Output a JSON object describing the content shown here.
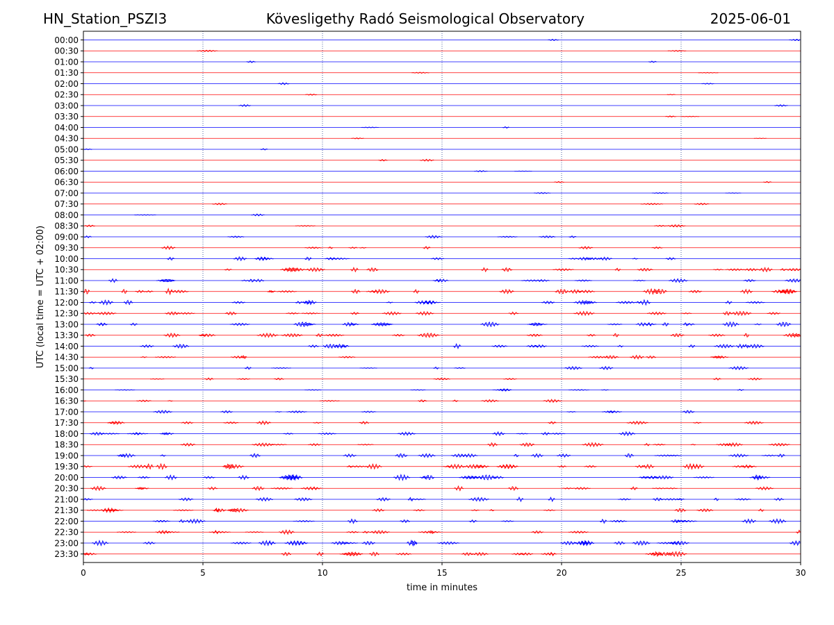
{
  "header": {
    "station": "HN_Station_PSZI3",
    "observatory": "Kövesligethy Radó Seismological Observatory",
    "date": "2025-06-01"
  },
  "colors": {
    "trace_even": "#0000ff",
    "trace_odd": "#ff0000",
    "baseline": "#000000",
    "grid": "#1f3a8a"
  },
  "chart_data": {
    "type": "line",
    "xlabel": "time in minutes",
    "ylabel": "UTC (local time = UTC + 02:00)",
    "xlim": [
      0,
      30
    ],
    "x_ticks": [
      "0",
      "5",
      "10",
      "15",
      "20",
      "25",
      "30"
    ],
    "x_tick_values": [
      0,
      5,
      10,
      15,
      20,
      25,
      30
    ],
    "vertical_grid_minutes": [
      5,
      10,
      15,
      20,
      25
    ],
    "grid": "vertical dotted",
    "rows": [
      {
        "label": "00:00",
        "activity": 0.05
      },
      {
        "label": "00:30",
        "activity": 0.05
      },
      {
        "label": "01:00",
        "activity": 0.08
      },
      {
        "label": "01:30",
        "activity": 0.05
      },
      {
        "label": "02:00",
        "activity": 0.05
      },
      {
        "label": "02:30",
        "activity": 0.05
      },
      {
        "label": "03:00",
        "activity": 0.06
      },
      {
        "label": "03:30",
        "activity": 0.06
      },
      {
        "label": "04:00",
        "activity": 0.05
      },
      {
        "label": "04:30",
        "activity": 0.05
      },
      {
        "label": "05:00",
        "activity": 0.05
      },
      {
        "label": "05:30",
        "activity": 0.05
      },
      {
        "label": "06:00",
        "activity": 0.05
      },
      {
        "label": "06:30",
        "activity": 0.05
      },
      {
        "label": "07:00",
        "activity": 0.1
      },
      {
        "label": "07:30",
        "activity": 0.1
      },
      {
        "label": "08:00",
        "activity": 0.08
      },
      {
        "label": "08:30",
        "activity": 0.12
      },
      {
        "label": "09:00",
        "activity": 0.2
      },
      {
        "label": "09:30",
        "activity": 0.25
      },
      {
        "label": "10:00",
        "activity": 0.45
      },
      {
        "label": "10:30",
        "activity": 0.55
      },
      {
        "label": "11:00",
        "activity": 0.5
      },
      {
        "label": "11:30",
        "activity": 0.8
      },
      {
        "label": "12:00",
        "activity": 0.65
      },
      {
        "label": "12:30",
        "activity": 0.55
      },
      {
        "label": "13:00",
        "activity": 0.75
      },
      {
        "label": "13:30",
        "activity": 0.6
      },
      {
        "label": "14:00",
        "activity": 0.55
      },
      {
        "label": "14:30",
        "activity": 0.35
      },
      {
        "label": "15:00",
        "activity": 0.3
      },
      {
        "label": "15:30",
        "activity": 0.25
      },
      {
        "label": "16:00",
        "activity": 0.25
      },
      {
        "label": "16:30",
        "activity": 0.25
      },
      {
        "label": "17:00",
        "activity": 0.3
      },
      {
        "label": "17:30",
        "activity": 0.35
      },
      {
        "label": "18:00",
        "activity": 0.45
      },
      {
        "label": "18:30",
        "activity": 0.45
      },
      {
        "label": "19:00",
        "activity": 0.6
      },
      {
        "label": "19:30",
        "activity": 0.8
      },
      {
        "label": "20:00",
        "activity": 0.75
      },
      {
        "label": "20:30",
        "activity": 0.55
      },
      {
        "label": "21:00",
        "activity": 0.55
      },
      {
        "label": "21:30",
        "activity": 0.6
      },
      {
        "label": "22:00",
        "activity": 0.5
      },
      {
        "label": "22:30",
        "activity": 0.5
      },
      {
        "label": "23:00",
        "activity": 0.75
      },
      {
        "label": "23:30",
        "activity": 0.6
      }
    ]
  }
}
